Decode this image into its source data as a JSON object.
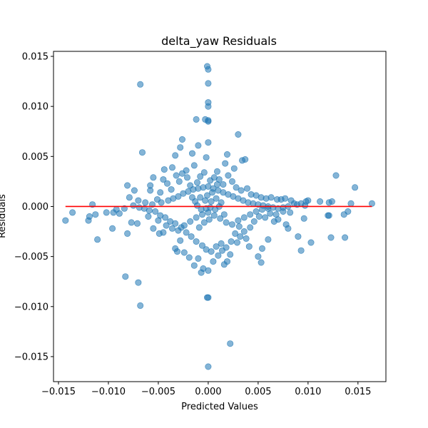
{
  "chart_data": {
    "type": "scatter",
    "title": "delta_yaw Residuals",
    "xlabel": "Predicted Values",
    "ylabel": "Residuals",
    "xlim": [
      -0.0155,
      0.0178
    ],
    "ylim": [
      -0.0175,
      0.0155
    ],
    "xticks": [
      -0.015,
      -0.01,
      -0.005,
      0.0,
      0.005,
      0.01,
      0.015
    ],
    "xtick_labels": [
      "−0.015",
      "−0.010",
      "−0.005",
      "0.000",
      "0.005",
      "0.010",
      "0.015"
    ],
    "yticks": [
      -0.015,
      -0.01,
      -0.005,
      0.0,
      0.005,
      0.01,
      0.015
    ],
    "ytick_labels": [
      "−0.015",
      "−0.010",
      "−0.005",
      "0.000",
      "0.005",
      "0.010",
      "0.015"
    ],
    "grid": false,
    "marker_color": "#1f77b4",
    "marker_alpha": 0.55,
    "reference_line": {
      "y": 0.0,
      "x_range": [
        -0.0143,
        0.0164
      ],
      "color": "#ff0000"
    },
    "points": [
      [
        -0.0001,
        0.014
      ],
      [
        0.0,
        0.0137
      ],
      [
        0.0,
        0.0123
      ],
      [
        -0.0068,
        0.0122
      ],
      [
        0.0,
        0.0104
      ],
      [
        0.0,
        0.01
      ],
      [
        -0.0012,
        0.0087
      ],
      [
        -0.0003,
        0.0087
      ],
      [
        0.0,
        0.0085
      ],
      [
        0.0,
        0.0086
      ],
      [
        0.0,
        0.0064
      ],
      [
        0.003,
        0.0072
      ],
      [
        -0.0026,
        0.0067
      ],
      [
        -0.0066,
        0.0054
      ],
      [
        -0.0033,
        0.0051
      ],
      [
        -0.0028,
        0.0059
      ],
      [
        -0.0016,
        0.0053
      ],
      [
        -0.001,
        0.0061
      ],
      [
        0.0019,
        0.0052
      ],
      [
        0.0037,
        0.0047
      ],
      [
        0.0034,
        0.0046
      ],
      [
        -0.0002,
        0.0049
      ],
      [
        0.0009,
        0.0035
      ],
      [
        0.0026,
        0.0038
      ],
      [
        0.0017,
        0.0043
      ],
      [
        -0.0036,
        0.0039
      ],
      [
        -0.0022,
        0.0036
      ],
      [
        -0.0044,
        0.0037
      ],
      [
        0.0128,
        0.0031
      ],
      [
        -0.0055,
        0.0029
      ],
      [
        0.0147,
        0.0019
      ],
      [
        0.0164,
        0.0003
      ],
      [
        0.0143,
        0.0003
      ],
      [
        0.0124,
        0.0005
      ],
      [
        0.0121,
        0.0004
      ],
      [
        0.0112,
        0.0005
      ],
      [
        0.01,
        0.0006
      ],
      [
        0.0098,
        0.0005
      ],
      [
        0.0103,
        -0.0036
      ],
      [
        0.0093,
        -0.0044
      ],
      [
        0.0137,
        -0.0031
      ],
      [
        0.0123,
        -0.0031
      ],
      [
        0.012,
        -0.0009
      ],
      [
        0.0121,
        -0.0009
      ],
      [
        0.0136,
        -0.0008
      ],
      [
        0.014,
        -0.0005
      ],
      [
        0.0096,
        -0.0012
      ],
      [
        0.009,
        -0.003
      ],
      [
        0.0078,
        -0.0018
      ],
      [
        0.008,
        -0.0022
      ],
      [
        0.007,
        -0.0013
      ],
      [
        0.0066,
        -0.0015
      ],
      [
        0.006,
        -0.0033
      ],
      [
        0.0054,
        -0.0042
      ],
      [
        0.005,
        -0.005
      ],
      [
        0.0053,
        -0.0056
      ],
      [
        0.0041,
        -0.004
      ],
      [
        0.0038,
        -0.0032
      ],
      [
        0.0032,
        -0.003
      ],
      [
        0.0029,
        -0.0036
      ],
      [
        0.0022,
        -0.0048
      ],
      [
        0.0019,
        -0.0055
      ],
      [
        0.0016,
        -0.0058
      ],
      [
        0.0014,
        -0.0044
      ],
      [
        0.001,
        -0.0049
      ],
      [
        0.0005,
        -0.0055
      ],
      [
        0.0,
        -0.0064
      ],
      [
        -0.0005,
        -0.0062
      ],
      [
        -0.0007,
        -0.0066
      ],
      [
        -0.001,
        -0.0052
      ],
      [
        -0.0014,
        -0.0059
      ],
      [
        -0.0019,
        -0.0051
      ],
      [
        -0.0024,
        -0.0046
      ],
      [
        -0.0031,
        -0.0045
      ],
      [
        -0.0033,
        -0.0042
      ],
      [
        -0.0028,
        -0.0034
      ],
      [
        -0.0045,
        -0.0026
      ],
      [
        -0.0049,
        -0.0027
      ],
      [
        -0.0055,
        -0.0022
      ],
      [
        -0.0071,
        -0.0017
      ],
      [
        -0.0077,
        -0.0016
      ],
      [
        -0.0081,
        -0.0027
      ],
      [
        -0.0096,
        -0.0022
      ],
      [
        -0.0111,
        -0.0033
      ],
      [
        -0.0136,
        -0.0006
      ],
      [
        -0.0143,
        -0.0014
      ],
      [
        -0.012,
        -0.0014
      ],
      [
        -0.0119,
        -0.001
      ],
      [
        -0.0116,
        0.0002
      ],
      [
        -0.0113,
        -0.0008
      ],
      [
        -0.0102,
        -0.0006
      ],
      [
        -0.0095,
        -0.0006
      ],
      [
        -0.0092,
        -0.0003
      ],
      [
        -0.0089,
        -0.0007
      ],
      [
        -0.0081,
        0.0021
      ],
      [
        -0.0079,
        0.0009
      ],
      [
        -0.0074,
        0.0016
      ],
      [
        -0.007,
        0.0006
      ],
      [
        -0.0058,
        0.0016
      ],
      [
        -0.0058,
        0.0021
      ],
      [
        -0.0051,
        0.0007
      ],
      [
        -0.0048,
        0.0014
      ],
      [
        -0.0045,
        0.0027
      ],
      [
        -0.0041,
        0.0023
      ],
      [
        -0.0037,
        0.0017
      ],
      [
        -0.0032,
        0.0031
      ],
      [
        -0.0029,
        0.0025
      ],
      [
        -0.0026,
        0.0033
      ],
      [
        -0.0021,
        0.0029
      ],
      [
        -0.0018,
        0.0021
      ],
      [
        -0.0014,
        0.0041
      ],
      [
        -0.0011,
        0.0024
      ],
      [
        -0.0008,
        0.003
      ],
      [
        -0.0004,
        0.0034
      ],
      [
        0.0002,
        0.0026
      ],
      [
        0.0006,
        0.0029
      ],
      [
        0.0011,
        0.0027
      ],
      [
        0.0015,
        0.0022
      ],
      [
        0.002,
        0.0031
      ],
      [
        0.0024,
        0.0025
      ],
      [
        0.0028,
        0.0019
      ],
      [
        0.0033,
        0.0016
      ],
      [
        0.0039,
        0.0018
      ],
      [
        0.0043,
        0.0012
      ],
      [
        0.0048,
        0.0011
      ],
      [
        0.0053,
        0.0009
      ],
      [
        0.0058,
        0.0008
      ],
      [
        0.0063,
        0.0009
      ],
      [
        0.0069,
        0.0007
      ],
      [
        0.0073,
        0.0007
      ],
      [
        0.0077,
        0.0008
      ],
      [
        0.0083,
        0.0006
      ],
      [
        0.0086,
        0.0003
      ],
      [
        0.0089,
        0.0002
      ],
      [
        0.0093,
        0.0003
      ],
      [
        0.0097,
        0.0001
      ],
      [
        0.0082,
        -0.0006
      ],
      [
        0.0075,
        -0.0005
      ],
      [
        0.0068,
        -0.0008
      ],
      [
        0.0062,
        -0.0007
      ],
      [
        0.0057,
        -0.0011
      ],
      [
        0.0051,
        -0.001
      ],
      [
        0.0046,
        -0.0015
      ],
      [
        0.0042,
        -0.0021
      ],
      [
        0.0036,
        -0.0025
      ],
      [
        0.0031,
        -0.002
      ],
      [
        0.0027,
        -0.0027
      ],
      [
        0.0023,
        -0.0035
      ],
      [
        0.0018,
        -0.0041
      ],
      [
        0.0013,
        -0.0037
      ],
      [
        0.0008,
        -0.004
      ],
      [
        0.0003,
        -0.0045
      ],
      [
        -0.0002,
        -0.0043
      ],
      [
        -0.0006,
        -0.0039
      ],
      [
        -0.0012,
        -0.0035
      ],
      [
        -0.0017,
        -0.003
      ],
      [
        -0.0022,
        -0.0026
      ],
      [
        -0.0027,
        -0.0021
      ],
      [
        -0.0033,
        -0.0017
      ],
      [
        -0.0038,
        -0.0015
      ],
      [
        -0.0043,
        -0.0011
      ],
      [
        -0.0048,
        -0.0009
      ],
      [
        -0.0053,
        -0.0005
      ],
      [
        -0.0059,
        -0.0004
      ],
      [
        -0.0064,
        -0.0002
      ],
      [
        -0.0069,
        -0.0001
      ],
      [
        -0.0075,
        0.0001
      ],
      [
        -0.0084,
        -0.0002
      ],
      [
        -0.0063,
        0.0004
      ],
      [
        -0.0056,
        0.0002
      ],
      [
        -0.0047,
        0.0004
      ],
      [
        -0.004,
        0.0006
      ],
      [
        -0.0035,
        0.0008
      ],
      [
        -0.003,
        0.001
      ],
      [
        -0.0025,
        0.0013
      ],
      [
        -0.002,
        0.0015
      ],
      [
        -0.0015,
        0.0017
      ],
      [
        -0.001,
        0.0018
      ],
      [
        -0.0005,
        0.0019
      ],
      [
        0.0,
        0.002
      ],
      [
        0.0005,
        0.0018
      ],
      [
        0.001,
        0.0016
      ],
      [
        0.0015,
        0.0014
      ],
      [
        0.002,
        0.0012
      ],
      [
        0.0025,
        0.001
      ],
      [
        0.003,
        0.0008
      ],
      [
        0.0035,
        0.0006
      ],
      [
        0.004,
        0.0004
      ],
      [
        0.0045,
        0.0003
      ],
      [
        0.005,
        0.0002
      ],
      [
        0.0055,
        0.0001
      ],
      [
        0.006,
        0.0
      ],
      [
        0.0065,
        -0.0001
      ],
      [
        0.007,
        -0.0002
      ],
      [
        0.0075,
        -0.0001
      ],
      [
        0.008,
        0.0
      ],
      [
        -0.006,
        -0.001
      ],
      [
        -0.005,
        -0.0014
      ],
      [
        -0.0042,
        -0.0019
      ],
      [
        -0.0036,
        -0.0022
      ],
      [
        -0.003,
        -0.0024
      ],
      [
        -0.0024,
        -0.0019
      ],
      [
        -0.0018,
        -0.0015
      ],
      [
        -0.0012,
        -0.0011
      ],
      [
        -0.0006,
        -0.0008
      ],
      [
        0.0,
        -0.0006
      ],
      [
        0.0006,
        -0.0009
      ],
      [
        0.0012,
        -0.0012
      ],
      [
        0.0018,
        -0.0016
      ],
      [
        0.0024,
        -0.0018
      ],
      [
        0.003,
        -0.0014
      ],
      [
        0.0036,
        -0.0011
      ],
      [
        0.0042,
        -0.0008
      ],
      [
        0.0048,
        -0.0005
      ],
      [
        0.0054,
        -0.0003
      ],
      [
        0.006,
        -0.0002
      ],
      [
        -0.0003,
        0.0006
      ],
      [
        0.0003,
        0.0005
      ],
      [
        -0.0008,
        0.0009
      ],
      [
        0.0008,
        0.0008
      ],
      [
        -0.0013,
        0.0005
      ],
      [
        0.0013,
        0.0004
      ],
      [
        -0.0002,
        -0.0002
      ],
      [
        0.0002,
        -0.0001
      ],
      [
        -0.0007,
        -0.0003
      ],
      [
        0.0007,
        -0.0003
      ],
      [
        -0.0011,
        0.0001
      ],
      [
        0.0011,
        0.0
      ],
      [
        -0.0001,
        0.0011
      ],
      [
        0.0001,
        -0.0013
      ],
      [
        -0.0004,
        -0.0016
      ],
      [
        0.0004,
        0.0014
      ],
      [
        -0.0009,
        -0.0021
      ],
      [
        0.0009,
        0.0022
      ],
      [
        -0.0016,
        0.0009
      ],
      [
        0.0016,
        -0.0008
      ],
      [
        -0.007,
        -0.0076
      ],
      [
        -0.0083,
        -0.007
      ],
      [
        -0.0068,
        -0.0099
      ],
      [
        0.0,
        -0.0091
      ],
      [
        -0.0001,
        -0.0091
      ],
      [
        0.0022,
        -0.0137
      ],
      [
        0.0,
        -0.016
      ]
    ]
  }
}
